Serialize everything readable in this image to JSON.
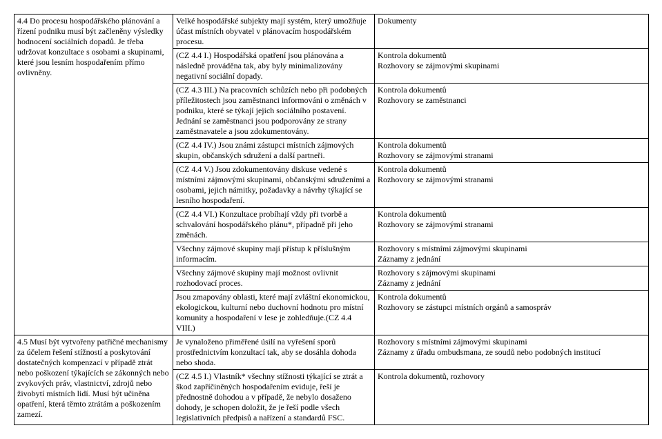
{
  "table": {
    "col1": {
      "criterion44": "4.4 Do procesu hospodářského plánování a řízení podniku musí být začleněny výsledky hodnocení sociálních dopadů. Je třeba udržovat konzultace s osobami a skupinami, které jsou lesním hospodařením přímo ovlivněny.",
      "criterion45": "4.5 Musí být vytvořeny patřičné mechanismy  za účelem řešení stížností a poskytování dostatečných kompenzací v případě ztrát nebo poškození týkajících se zákonných nebo zvykových práv, vlastnictví, zdrojů nebo živobytí místních lidí. Musí být učiněna opatření, která těmto ztrátám a poškozením zamezí."
    },
    "rows": [
      {
        "c2": "Velké hospodářské subjekty mají systém, který umožňuje účast místních obyvatel v plánovacím hospodářském procesu.",
        "c3": "Dokumenty"
      },
      {
        "c2": "(CZ 4.4 I.) Hospodářská opatření jsou plánována a následně prováděna tak, aby byly minimalizovány negativní sociální dopady.",
        "c3": "Kontrola dokumentů\nRozhovory se zájmovými skupinami"
      },
      {
        "c2": "(CZ 4.3 III.) Na pracovních schůzích nebo při podobných příležitostech jsou zaměstnanci informováni o změnách v podniku, které se týkají jejich sociálního postavení. Jednání se zaměstnanci jsou podporovány ze strany zaměstnavatele a jsou zdokumentovány.",
        "c3": "Kontrola dokumentů\nRozhovory se zaměstnanci"
      },
      {
        "c2": "(CZ 4.4 IV.) Jsou známi zástupci místních zájmových skupin, občanských sdružení a další partneři.",
        "c3": "Kontrola dokumentů\nRozhovory se zájmovými stranami"
      },
      {
        "c2": "(CZ 4.4 V.) Jsou zdokumentovány diskuse vedené s místními zájmovými skupinami, občanskými sdruženími a osobami, jejich námitky, požadavky a návrhy týkající se lesního hospodaření.",
        "c3": "Kontrola dokumentů\nRozhovory se zájmovými stranami"
      },
      {
        "c2": "(CZ 4.4 VI.) Konzultace probíhají vždy při tvorbě a schvalování hospodářského plánu*, případně  při jeho změnách.",
        "c3": "Kontrola dokumentů\nRozhovory se zájmovými stranami"
      },
      {
        "c2": "Všechny zájmové skupiny mají přístup k příslušným informacím.",
        "c3": "Rozhovory s místními zájmovými skupinami\nZáznamy z jednání"
      },
      {
        "c2": "Všechny zájmové skupiny mají možnost ovlivnit rozhodovací proces.",
        "c3": "Rozhovory s zájmovými skupinami\nZáznamy z jednání"
      },
      {
        "c2": "Jsou zmapovány oblasti, které mají zvláštní ekonomickou, ekologickou, kulturní nebo duchovní hodnotu pro místní komunity a hospodaření v lese je zohledňuje.(CZ 4.4 VIII.)",
        "c3": "Kontrola dokumentů\nRozhovory se zástupci místních orgánů a samospráv"
      },
      {
        "c2": "Je vynaloženo přiměřené úsilí na vyřešení sporů prostřednictvím konzultací tak, aby se dosáhla dohoda nebo shoda.",
        "c3": "Rozhovory s místními zájmovými skupinami\nZáznamy z úřadu ombudsmana, ze soudů nebo podobných institucí"
      },
      {
        "c2": "(CZ 4.5 I.) Vlastník*  všechny stížnosti týkající se ztrát a škod zapříčiněných hospodařením eviduje, řeší je přednostně dohodou a v případě, že nebylo dosaženo dohody, je schopen doložit, že je řeší podle všech legislativních předpisů a nařízení a standardů FSC.",
        "c3": "Kontrola dokumentů, rozhovory"
      }
    ]
  }
}
